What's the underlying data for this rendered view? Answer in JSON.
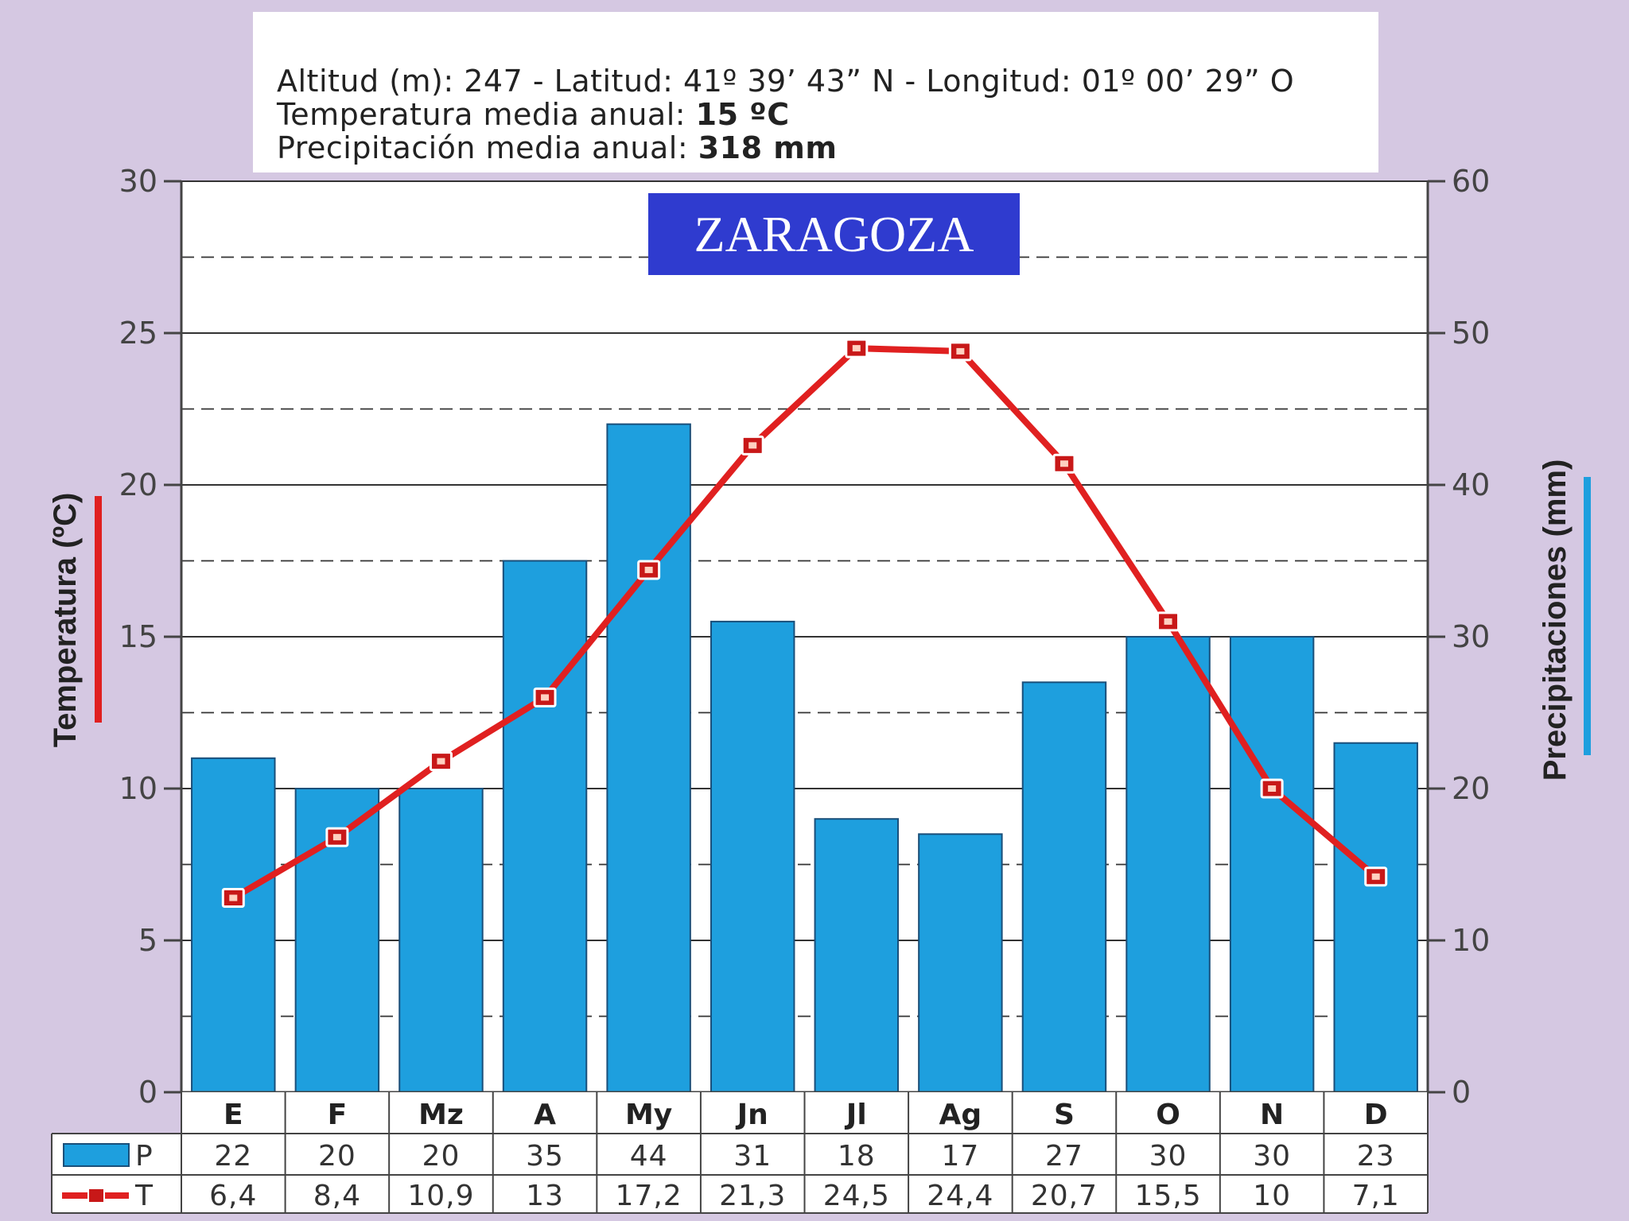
{
  "header": {
    "line1": "Altitud (m): 247 - Latitud: 41º 39’ 43” N - Longitud: 01º 00’ 29” O",
    "line2_label": "Temperatura media anual: ",
    "line2_value": "15 ºC",
    "line3_label": "Precipitación media anual: ",
    "line3_value": "318 mm"
  },
  "colors": {
    "bars": "#1e9fde",
    "line": "#e02020",
    "title_bg": "#2f3bcf",
    "background": "#d5c8e2"
  },
  "chart_data": {
    "type": "bar",
    "title": "ZARAGOZA",
    "categories": [
      "E",
      "F",
      "Mz",
      "A",
      "My",
      "Jn",
      "Jl",
      "Ag",
      "S",
      "O",
      "N",
      "D"
    ],
    "ylabel_left": "Temperatura (ºC)",
    "ylabel_right": "Precipitaciones (mm)",
    "ylim_left": [
      0,
      30
    ],
    "ylim_right": [
      0,
      60
    ],
    "yticks_left": [
      0,
      5,
      10,
      15,
      20,
      25,
      30
    ],
    "yticks_right": [
      0,
      10,
      20,
      30,
      40,
      50,
      60
    ],
    "grid": true,
    "series": [
      {
        "name": "P",
        "type": "bar",
        "axis": "right",
        "values": [
          22,
          20,
          20,
          35,
          44,
          31,
          18,
          17,
          27,
          30,
          30,
          23
        ]
      },
      {
        "name": "T",
        "type": "line",
        "axis": "left",
        "values": [
          6.4,
          8.4,
          10.9,
          13,
          17.2,
          21.3,
          24.5,
          24.4,
          20.7,
          15.5,
          10,
          7.1
        ]
      }
    ],
    "table": {
      "P": [
        "22",
        "20",
        "20",
        "35",
        "44",
        "31",
        "18",
        "17",
        "27",
        "30",
        "30",
        "23"
      ],
      "T": [
        "6,4",
        "8,4",
        "10,9",
        "13",
        "17,2",
        "21,3",
        "24,5",
        "24,4",
        "20,7",
        "15,5",
        "10",
        "7,1"
      ]
    }
  }
}
